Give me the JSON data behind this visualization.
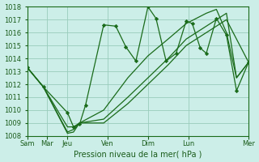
{
  "xlabel": "Pression niveau de la mer( hPa )",
  "bg_color": "#cceee8",
  "grid_color": "#99ccbb",
  "line_color": "#1a6b1a",
  "ylim": [
    1008,
    1018
  ],
  "xlim": [
    0,
    11
  ],
  "day_tick_pos": [
    0,
    1,
    2,
    4,
    6,
    8,
    11
  ],
  "day_labels": [
    "Sam",
    "Mar",
    "Jeu",
    "Ven",
    "Dim",
    "Lun",
    "Mer"
  ],
  "series": [
    {
      "x": [
        0.0,
        0.8,
        2.0,
        2.3,
        2.6,
        2.9,
        3.8,
        4.4,
        4.9,
        5.4,
        6.0,
        6.4,
        6.9,
        7.4,
        7.9,
        8.2,
        8.6,
        8.9,
        9.4,
        9.9,
        10.4,
        11.0
      ],
      "y": [
        1013.3,
        1011.8,
        1009.8,
        1008.7,
        1008.9,
        1010.4,
        1016.6,
        1016.5,
        1014.9,
        1013.8,
        1018.0,
        1017.1,
        1013.8,
        1014.4,
        1016.9,
        1016.7,
        1014.8,
        1014.4,
        1017.1,
        1015.8,
        1011.5,
        1013.7
      ],
      "marker": "D",
      "markersize": 2.2
    },
    {
      "x": [
        0.0,
        0.8,
        2.0,
        2.3,
        2.6,
        3.8,
        5.0,
        6.0,
        7.0,
        7.9,
        8.9,
        9.4,
        9.9,
        10.4,
        11.0
      ],
      "y": [
        1013.3,
        1011.8,
        1008.7,
        1008.7,
        1009.0,
        1010.0,
        1012.5,
        1014.2,
        1015.5,
        1016.7,
        1017.5,
        1017.8,
        1016.0,
        1012.5,
        1013.7
      ],
      "marker": null,
      "markersize": 0
    },
    {
      "x": [
        0.0,
        0.8,
        2.0,
        2.3,
        2.6,
        3.8,
        5.0,
        6.0,
        7.0,
        7.9,
        8.9,
        9.9,
        10.4,
        11.0
      ],
      "y": [
        1013.3,
        1011.8,
        1008.3,
        1008.5,
        1009.0,
        1009.3,
        1011.0,
        1012.5,
        1014.0,
        1015.5,
        1016.5,
        1017.5,
        1012.5,
        1013.7
      ],
      "marker": null,
      "markersize": 0
    },
    {
      "x": [
        0.0,
        0.8,
        2.0,
        2.3,
        2.6,
        3.8,
        5.0,
        6.0,
        7.0,
        7.9,
        8.9,
        9.9,
        11.0
      ],
      "y": [
        1013.3,
        1011.8,
        1008.2,
        1008.3,
        1009.0,
        1009.0,
        1010.5,
        1012.0,
        1013.5,
        1015.0,
        1016.0,
        1017.0,
        1013.7
      ],
      "marker": null,
      "markersize": 0
    }
  ],
  "xlabel_fontsize": 7,
  "tick_fontsize": 6,
  "tick_color": "#1a5c1a",
  "spine_color": "#1a6b1a"
}
